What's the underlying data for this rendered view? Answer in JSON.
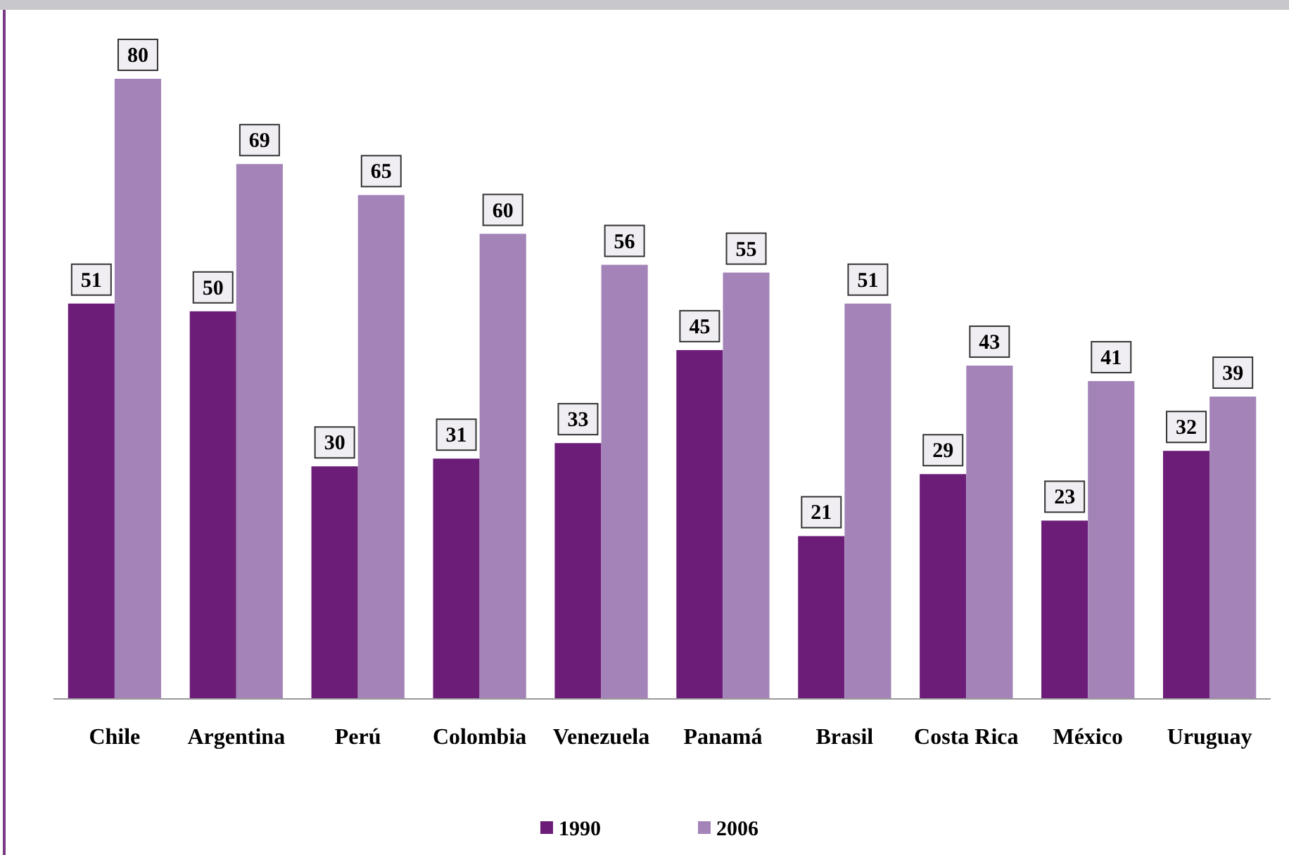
{
  "chart_data": {
    "type": "bar",
    "categories": [
      "Chile",
      "Argentina",
      "Perú",
      "Colombia",
      "Venezuela",
      "Panamá",
      "Brasil",
      "Costa Rica",
      "México",
      "Uruguay"
    ],
    "series": [
      {
        "name": "1990",
        "color": "#6b1d78",
        "values": [
          51,
          50,
          30,
          31,
          33,
          45,
          21,
          29,
          23,
          32
        ]
      },
      {
        "name": "2006",
        "color": "#a484b8",
        "values": [
          80,
          69,
          65,
          60,
          56,
          55,
          51,
          43,
          41,
          39
        ]
      }
    ],
    "data_labels": true,
    "legend": "bottom"
  }
}
